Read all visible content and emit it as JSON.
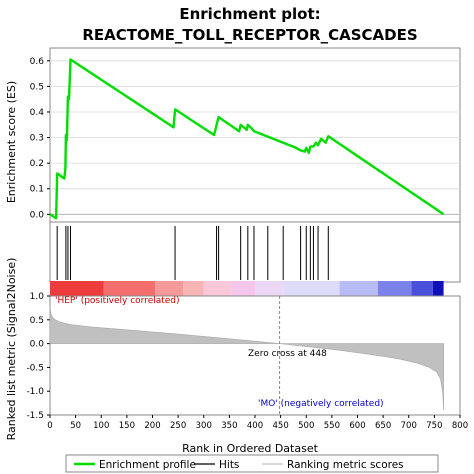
{
  "chart_data": {
    "type": "line",
    "title": "Enrichment plot:",
    "subtitle": "REACTOME_TOLL_RECEPTOR_CASCADES",
    "colors": {
      "es_line": "#00dd00",
      "hits": "#000000",
      "metric": "#c0c0c0",
      "zero_cross": "#888888",
      "pos_label": "#cc0000",
      "neg_label": "#0000cc"
    },
    "es_panel": {
      "ylabel": "Enrichment score (ES)",
      "ylim": [
        -0.03,
        0.65
      ],
      "yticks": [
        {
          "value": 0.0,
          "label": "0.0"
        },
        {
          "value": 0.1,
          "label": "0.1"
        },
        {
          "value": 0.2,
          "label": "0.2"
        },
        {
          "value": 0.3,
          "label": "0.3"
        },
        {
          "value": 0.4,
          "label": "0.4"
        },
        {
          "value": 0.5,
          "label": "0.5"
        },
        {
          "value": 0.6,
          "label": "0.6"
        }
      ],
      "series": [
        {
          "name": "Enrichment profile",
          "x": [
            0,
            12,
            14,
            28,
            30,
            31,
            33,
            35,
            37,
            40,
            241,
            244,
            320,
            329,
            369,
            372,
            384,
            386,
            394,
            398,
            480,
            489,
            497,
            500,
            505,
            508,
            514,
            519,
            523,
            529,
            538,
            543,
            768
          ],
          "y": [
            0.0,
            -0.015,
            0.16,
            0.14,
            0.18,
            0.31,
            0.29,
            0.46,
            0.45,
            0.605,
            0.34,
            0.41,
            0.31,
            0.38,
            0.325,
            0.35,
            0.33,
            0.35,
            0.335,
            0.325,
            0.26,
            0.25,
            0.245,
            0.26,
            0.24,
            0.265,
            0.265,
            0.28,
            0.27,
            0.295,
            0.28,
            0.305,
            0.0
          ]
        }
      ]
    },
    "hits": {
      "name": "Hits",
      "x": [
        14,
        31,
        35,
        40,
        244,
        325,
        329,
        372,
        386,
        398,
        425,
        455,
        489,
        500,
        508,
        514,
        523,
        543
      ]
    },
    "rank_metric": {
      "name": "Ranking metric scores",
      "ylabel": "Ranked list metric (Signal2Noise)",
      "ylim": [
        -1.5,
        1.0
      ],
      "yticks": [
        {
          "value": 1.0,
          "label": "1.0"
        },
        {
          "value": 0.5,
          "label": "0.5"
        },
        {
          "value": 0.0,
          "label": "0.0"
        },
        {
          "value": -0.5,
          "label": "-0.5"
        },
        {
          "value": -1.0,
          "label": "-1.0"
        },
        {
          "value": -1.5,
          "label": "-1.5"
        }
      ],
      "x": [
        0,
        2,
        5,
        10,
        20,
        40,
        80,
        150,
        250,
        350,
        420,
        448,
        480,
        550,
        620,
        680,
        720,
        740,
        755,
        762,
        766,
        768
      ],
      "y": [
        0.78,
        0.62,
        0.55,
        0.5,
        0.45,
        0.4,
        0.35,
        0.29,
        0.2,
        0.1,
        0.03,
        0.0,
        -0.04,
        -0.12,
        -0.22,
        -0.32,
        -0.42,
        -0.5,
        -0.6,
        -0.75,
        -1.0,
        -1.4
      ],
      "zero_cross_x": 448,
      "zero_cross_label": "Zero cross at 448",
      "pos_label": "'HEP' (positively correlated)",
      "neg_label": "'MO' (negatively correlated)"
    },
    "xlabel": "Rank in Ordered Dataset",
    "xlim": [
      0,
      800
    ],
    "xticks": [
      {
        "value": 0,
        "label": "0"
      },
      {
        "value": 50,
        "label": "50"
      },
      {
        "value": 100,
        "label": "100"
      },
      {
        "value": 150,
        "label": "150"
      },
      {
        "value": 200,
        "label": "200"
      },
      {
        "value": 250,
        "label": "250"
      },
      {
        "value": 300,
        "label": "300"
      },
      {
        "value": 350,
        "label": "350"
      },
      {
        "value": 400,
        "label": "400"
      },
      {
        "value": 450,
        "label": "450"
      },
      {
        "value": 500,
        "label": "500"
      },
      {
        "value": 550,
        "label": "550"
      },
      {
        "value": 600,
        "label": "600"
      },
      {
        "value": 650,
        "label": "650"
      },
      {
        "value": 700,
        "label": "700"
      },
      {
        "value": 750,
        "label": "750"
      },
      {
        "value": 800,
        "label": "800"
      }
    ],
    "heat_bar": {
      "segments": [
        {
          "start": 0,
          "end": 105,
          "color": "#ee3b3b"
        },
        {
          "start": 105,
          "end": 205,
          "color": "#f46e6e"
        },
        {
          "start": 205,
          "end": 260,
          "color": "#f59a9a"
        },
        {
          "start": 260,
          "end": 300,
          "color": "#f6b4b4"
        },
        {
          "start": 300,
          "end": 355,
          "color": "#f9c8d8"
        },
        {
          "start": 355,
          "end": 400,
          "color": "#f4c6ea"
        },
        {
          "start": 400,
          "end": 455,
          "color": "#ecd8f4"
        },
        {
          "start": 455,
          "end": 565,
          "color": "#dcdcf8"
        },
        {
          "start": 565,
          "end": 640,
          "color": "#b8bcf4"
        },
        {
          "start": 640,
          "end": 705,
          "color": "#7a82ea"
        },
        {
          "start": 705,
          "end": 747,
          "color": "#4a50dc"
        },
        {
          "start": 747,
          "end": 768,
          "color": "#1010b8"
        }
      ]
    },
    "legend": {
      "placement": "bottom",
      "entries": [
        {
          "label": "Enrichment profile",
          "color": "#00dd00",
          "kind": "thick"
        },
        {
          "label": "Hits",
          "color": "#000000",
          "kind": "thin"
        },
        {
          "label": "Ranking metric scores",
          "color": "#c0c0c0",
          "kind": "thin"
        }
      ]
    }
  }
}
